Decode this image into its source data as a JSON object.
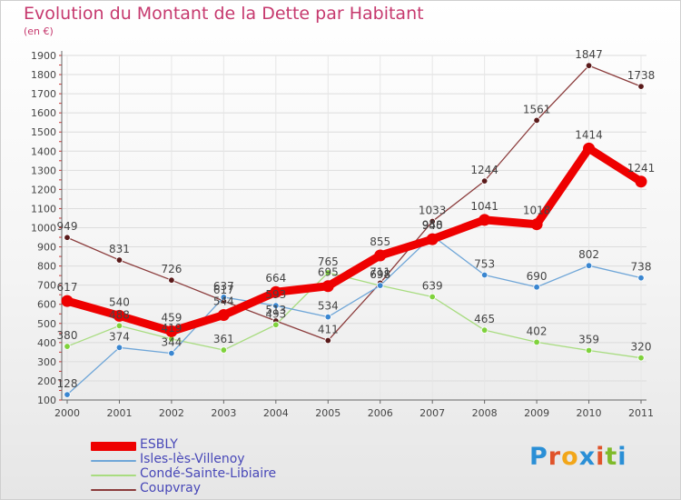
{
  "title": "Evolution du Montant de la Dette par Habitant",
  "subtitle": "(en €)",
  "logo": {
    "text": "Proxiti",
    "letter_colors": [
      "#2a8fd6",
      "#e0532a",
      "#f2a619",
      "#2a8fd6",
      "#e0532a",
      "#7fba2a",
      "#2a8fd6"
    ]
  },
  "chart_data": {
    "type": "line",
    "x": [
      "2000",
      "2001",
      "2002",
      "2003",
      "2004",
      "2005",
      "2006",
      "2007",
      "2008",
      "2009",
      "2010",
      "2011"
    ],
    "ylim": [
      100,
      1900
    ],
    "yticks": [
      100,
      200,
      300,
      400,
      500,
      600,
      700,
      800,
      900,
      1000,
      1100,
      1200,
      1300,
      1400,
      1500,
      1600,
      1700,
      1800,
      1900
    ],
    "grid": true,
    "legend_position": "bottom-left",
    "series": [
      {
        "name": "Coupvray",
        "color": "#8b3c3c",
        "marker_color": "#5a1a1a",
        "values": [
          949,
          831,
          726,
          617,
          513,
          411,
          711,
          1033,
          1244,
          1561,
          1847,
          1738
        ],
        "labels": [
          "949",
          "831",
          "726",
          "617",
          "513",
          "411",
          "711",
          "1033",
          "1244",
          "1561",
          "1847",
          "1738"
        ]
      },
      {
        "name": "Condé-Sainte-Libiaire",
        "color": "#a8dc80",
        "marker_color": "#7fd23c",
        "values": [
          380,
          488,
          419,
          361,
          493,
          765,
          698,
          639,
          465,
          402,
          359,
          320
        ],
        "labels": [
          "380",
          "488",
          "419",
          "361",
          "493",
          "765",
          "698",
          "639",
          "465",
          "402",
          "359",
          "320"
        ]
      },
      {
        "name": "Isles-lès-Villenoy",
        "color": "#6fa6d8",
        "marker_color": "#3a86d0",
        "values": [
          128,
          374,
          344,
          637,
          593,
          534,
          698,
          958,
          753,
          690,
          802,
          738
        ],
        "labels": [
          "128",
          "374",
          "344",
          "637",
          "593",
          "534",
          "698",
          "958",
          "753",
          "690",
          "802",
          "738"
        ]
      },
      {
        "name": "ESBLY",
        "color": "#ee0000",
        "marker_color": "#ee0000",
        "values": [
          617,
          540,
          459,
          544,
          664,
          695,
          855,
          940,
          1041,
          1018,
          1414,
          1241
        ],
        "labels": [
          "617",
          "540",
          "459",
          "544",
          "664",
          "695",
          "855",
          "940",
          "1041",
          "1018",
          "1414",
          "1241"
        ]
      }
    ],
    "legend": [
      "ESBLY",
      "Isles-lès-Villenoy",
      "Condé-Sainte-Libiaire",
      "Coupvray"
    ]
  }
}
